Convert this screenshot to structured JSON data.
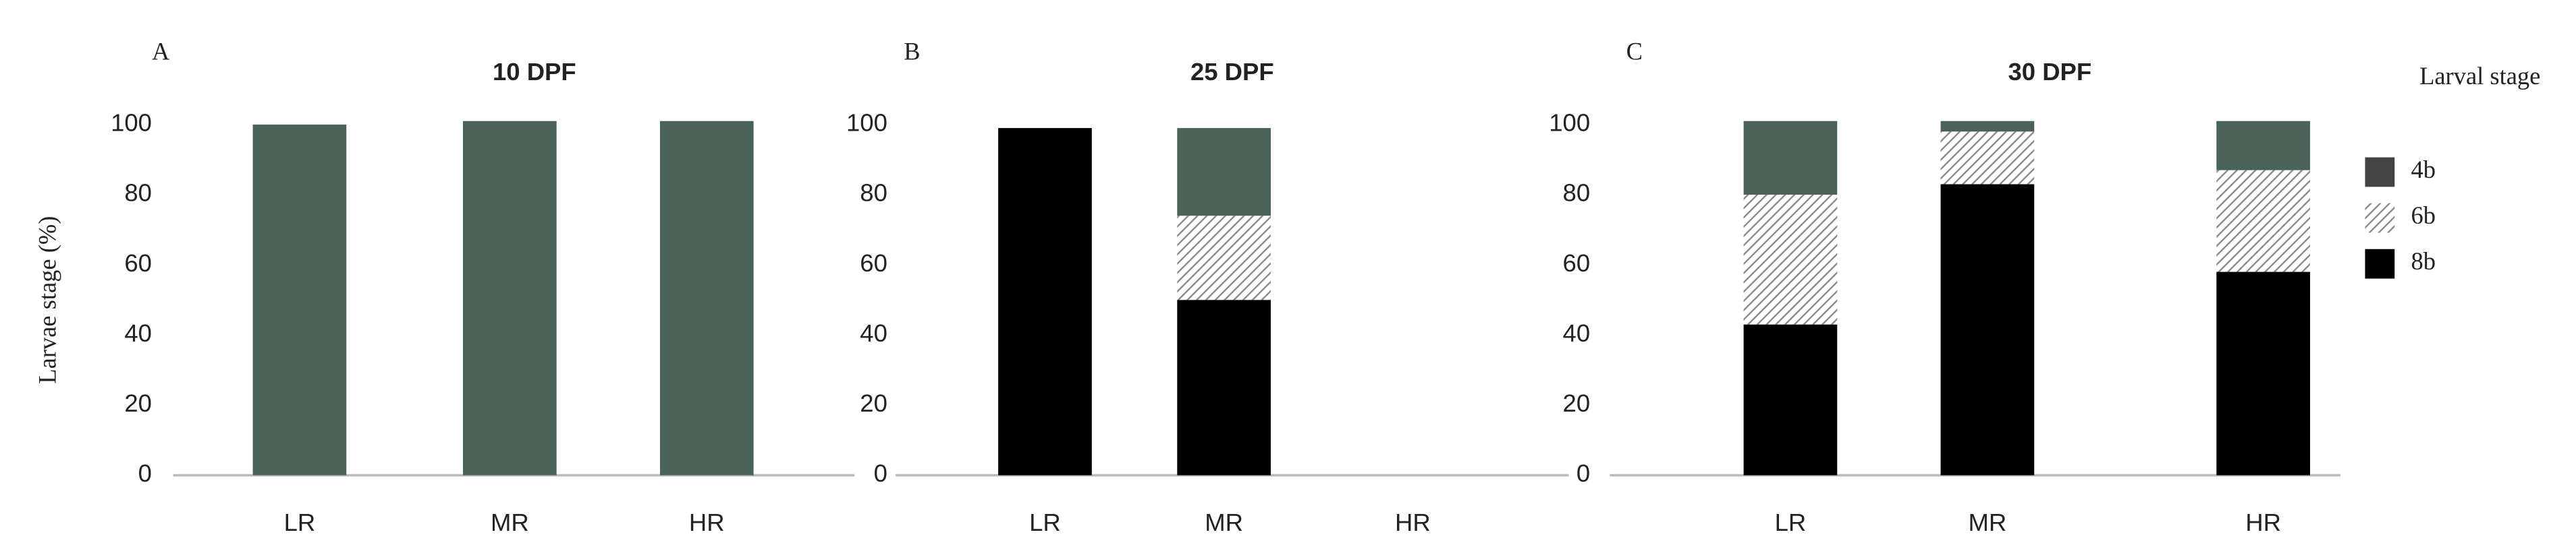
{
  "chart_data": [
    {
      "type": "bar",
      "stacked": true,
      "panel_label": "A",
      "title": "10 DPF",
      "ylabel": "Larvae stage (%)",
      "categories": [
        "LR",
        "MR",
        "HR"
      ],
      "series": [
        {
          "name": "8b",
          "color": "#000000",
          "values": [
            0,
            0,
            0
          ]
        },
        {
          "name": "6b",
          "color": "#8c8c8c",
          "hatch": true,
          "values": [
            0,
            0,
            0
          ]
        },
        {
          "name": "4b",
          "color": "#4a6358",
          "values": [
            100,
            101,
            101
          ]
        }
      ],
      "ylim": [
        0,
        100
      ],
      "yticks": [
        0,
        20,
        40,
        60,
        80,
        100
      ]
    },
    {
      "type": "bar",
      "stacked": true,
      "panel_label": "B",
      "title": "25 DPF",
      "categories": [
        "LR",
        "MR",
        "HR"
      ],
      "series": [
        {
          "name": "8b",
          "color": "#000000",
          "values": [
            99,
            50,
            0
          ]
        },
        {
          "name": "6b",
          "color": "#8c8c8c",
          "hatch": true,
          "values": [
            0,
            24,
            0
          ]
        },
        {
          "name": "4b",
          "color": "#4a6358",
          "values": [
            0,
            25,
            0
          ]
        }
      ],
      "ylim": [
        0,
        100
      ],
      "yticks": [
        0,
        20,
        40,
        60,
        80,
        100
      ]
    },
    {
      "type": "bar",
      "stacked": true,
      "panel_label": "C",
      "title": "30 DPF",
      "legend_title": "Larval stage",
      "legend": "right",
      "categories": [
        "LR",
        "MR",
        "HR"
      ],
      "series": [
        {
          "name": "8b",
          "color": "#000000",
          "values": [
            43,
            83,
            58
          ]
        },
        {
          "name": "6b",
          "color": "#8c8c8c",
          "hatch": true,
          "values": [
            37,
            15,
            29
          ]
        },
        {
          "name": "4b",
          "color": "#4a6358",
          "values": [
            21,
            3,
            14
          ]
        }
      ],
      "ylim": [
        0,
        100
      ],
      "yticks": [
        0,
        20,
        40,
        60,
        80,
        100
      ]
    }
  ]
}
